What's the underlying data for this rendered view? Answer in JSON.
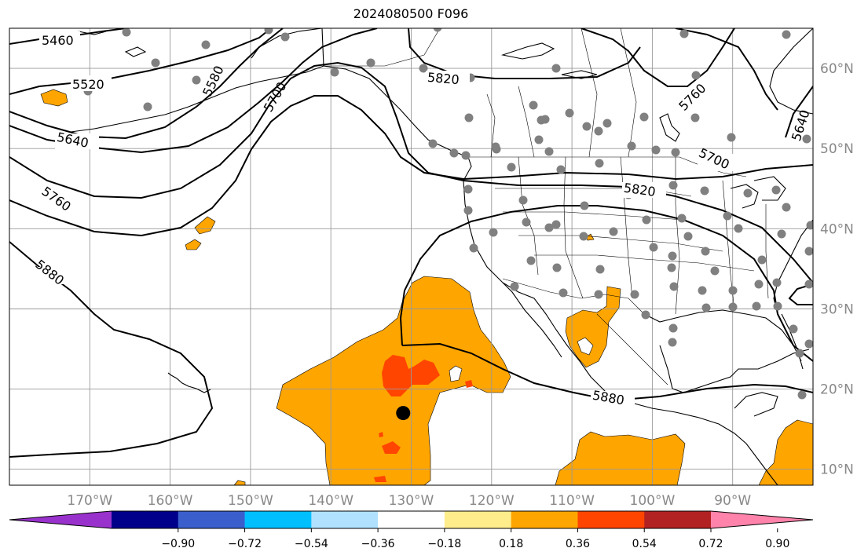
{
  "title": "2024080500 F096",
  "map": {
    "lon_range": [
      -180,
      -80
    ],
    "lat_range": [
      8,
      65
    ],
    "lat_labels": [
      "10°N",
      "20°N",
      "30°N",
      "40°N",
      "50°N",
      "60°N"
    ],
    "lat_values": [
      10,
      20,
      30,
      40,
      50,
      60
    ],
    "lon_labels": [
      "170°W",
      "160°W",
      "150°W",
      "140°W",
      "130°W",
      "120°W",
      "110°W",
      "100°W",
      "90°W"
    ],
    "lon_values": [
      -170,
      -160,
      -150,
      -140,
      -130,
      -120,
      -110,
      -100,
      -90
    ],
    "grid": true,
    "contour_labels": [
      "5460",
      "5520",
      "5580",
      "5640",
      "5700",
      "5760",
      "5820",
      "5880",
      "5820",
      "5760",
      "5700",
      "5640",
      "5880"
    ],
    "storm_marker": {
      "lon": -131,
      "lat": 17
    },
    "colors": {
      "shade_orange": "#FFA500",
      "shade_red": "#FF4500",
      "station_dots": "#808080",
      "contours": "#000000",
      "grid": "#999999"
    }
  },
  "colorbar": {
    "ticks": [
      "−0.90",
      "−0.72",
      "−0.54",
      "−0.36",
      "−0.18",
      "0.18",
      "0.36",
      "0.54",
      "0.72",
      "0.90"
    ],
    "colors": [
      "#9932CC",
      "#00008B",
      "#3A5FCD",
      "#00BFFF",
      "#B0E2FF",
      "#FFFFFF",
      "#FFEC8B",
      "#FFA500",
      "#FF4500",
      "#B22222",
      "#FF83AA"
    ]
  }
}
